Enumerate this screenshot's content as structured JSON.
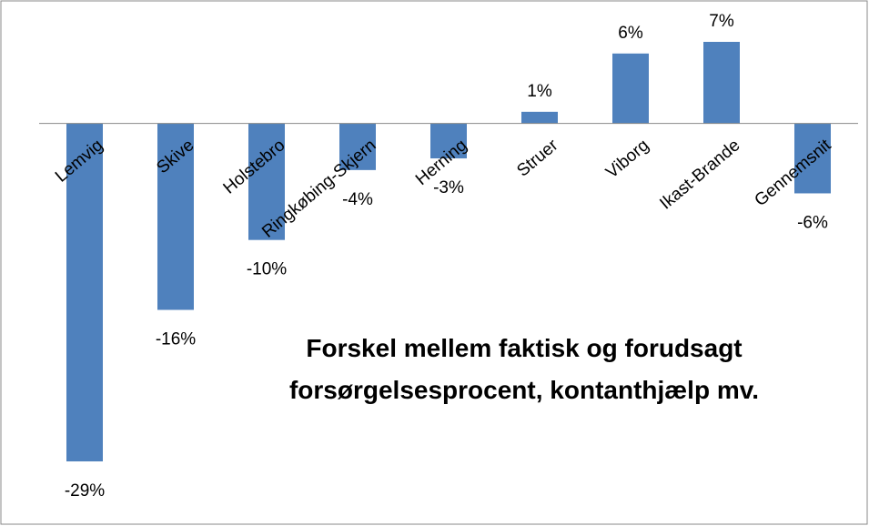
{
  "chart_data": {
    "type": "bar",
    "title": "Forskel mellem faktisk og forudsagt forsørgelsesprocent, kontanthjælp mv.",
    "categories": [
      "Lemvig",
      "Skive",
      "Holstebro",
      "Ringkøbing-Skjern",
      "Herning",
      "Struer",
      "Viborg",
      "Ikast-Brande",
      "Gennemsnit"
    ],
    "values": [
      -29,
      -16,
      -10,
      -4,
      -3,
      1,
      6,
      7,
      -6
    ],
    "value_labels": [
      "-29%",
      "-16%",
      "-10%",
      "-4%",
      "-3%",
      "1%",
      "6%",
      "7%",
      "-6%"
    ],
    "color": "#4f81bd"
  }
}
